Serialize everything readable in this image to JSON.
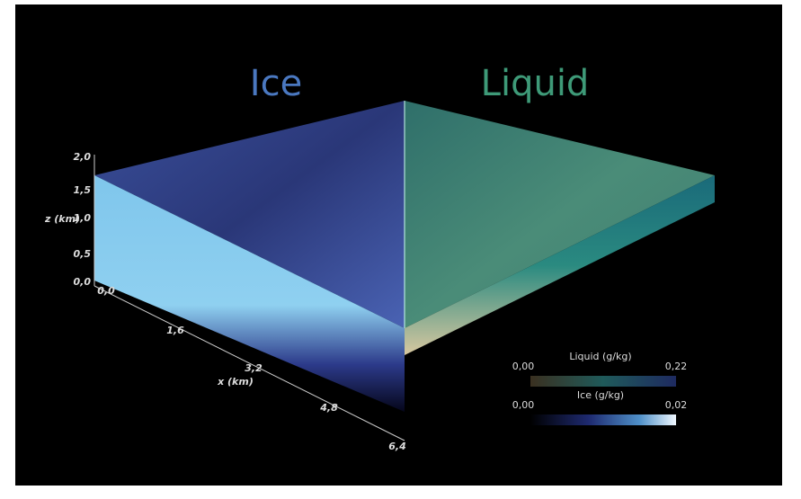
{
  "titles": {
    "ice": "Ice",
    "liquid": "Liquid"
  },
  "z_axis": {
    "label": "z (km)",
    "ticks": [
      "2,0",
      "1,5",
      "1,0",
      "0,5",
      "0,0"
    ]
  },
  "x_axis": {
    "label": "x (km)",
    "ticks": [
      "0,0",
      "1,6",
      "3,2",
      "4,8",
      "6,4"
    ]
  },
  "colorbars": [
    {
      "label": "Liquid (g/kg)",
      "min": "0,00",
      "max": "0,22"
    },
    {
      "label": "Ice (g/kg)",
      "min": "0,00",
      "max": "0,02"
    }
  ]
}
